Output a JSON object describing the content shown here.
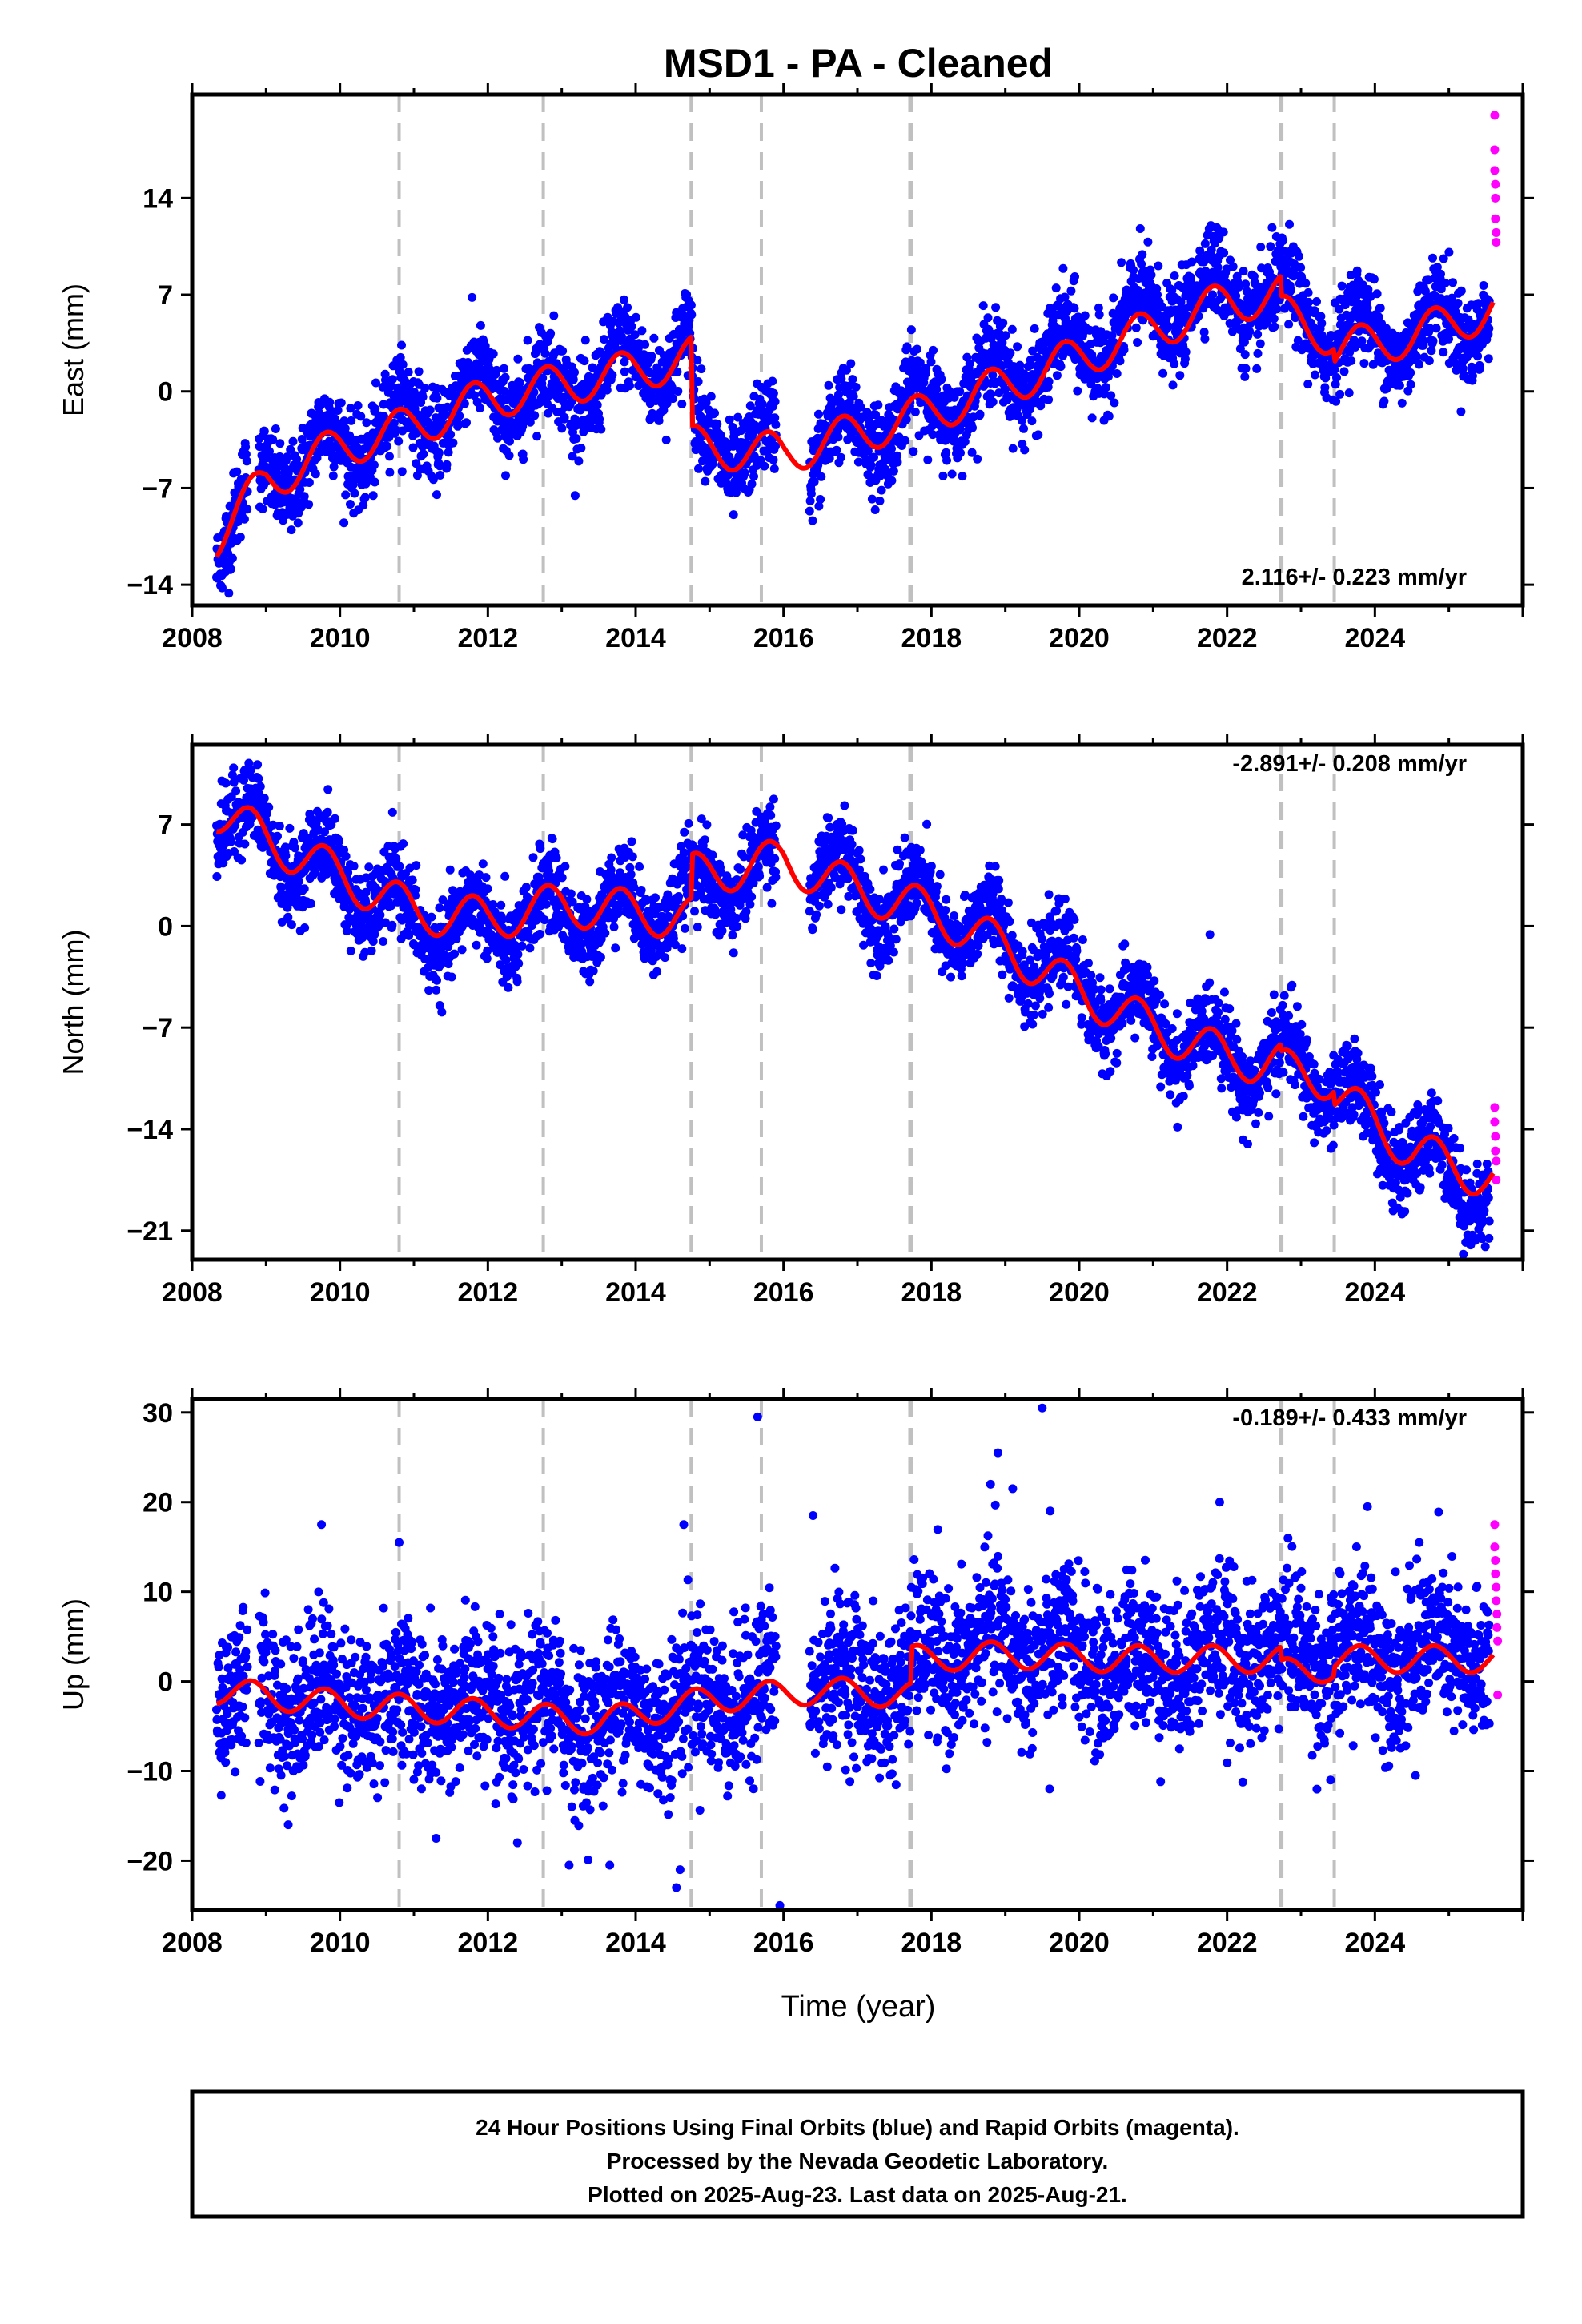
{
  "title": "MSD1  - PA - Cleaned",
  "x_axis_label": "Time (year)",
  "footer": {
    "line1": "24 Hour Positions Using Final Orbits (blue) and Rapid Orbits (magenta).",
    "line2": "Processed by the Nevada Geodetic Laboratory.",
    "line3": "Plotted on 2025-Aug-23. Last data on 2025-Aug-21."
  },
  "colors": {
    "final_orbits": "#0000ff",
    "rapid_orbits": "#ff00ff",
    "model_fit": "#ff0000",
    "event_lines": "#c0c0c0"
  },
  "chart_data": [
    {
      "type": "scatter",
      "id": "east",
      "ylabel": "East (mm)",
      "rate": "2.116+/- 0.223 mm/yr",
      "xlim": [
        2008.0,
        2026.0
      ],
      "ylim": [
        -15.5,
        21.5
      ],
      "xticks": [
        2008,
        2010,
        2012,
        2014,
        2016,
        2018,
        2020,
        2022,
        2024
      ],
      "yticks": [
        -14,
        -7,
        0,
        7,
        14
      ],
      "event_lines": [
        2010.8,
        2012.75,
        2014.75,
        2015.7,
        2017.72,
        2022.73,
        2023.45
      ],
      "series": [
        {
          "name": "Final Orbits",
          "style": "points",
          "color": "#0000ff",
          "start": 2008.33,
          "end": 2025.55,
          "trend": [
            [
              2008.33,
              -11
            ],
            [
              2009.0,
              -6
            ],
            [
              2010.0,
              -4
            ],
            [
              2011.0,
              -2
            ],
            [
              2012.0,
              0
            ],
            [
              2013.0,
              0
            ],
            [
              2014.0,
              2
            ],
            [
              2014.75,
              3
            ],
            [
              2014.8,
              -3.5
            ],
            [
              2016.2,
              -4.5
            ],
            [
              2017.0,
              -3
            ],
            [
              2018.0,
              -1
            ],
            [
              2019.0,
              1
            ],
            [
              2020.0,
              3
            ],
            [
              2021.0,
              5.5
            ],
            [
              2021.5,
              7
            ],
            [
              2022.5,
              7
            ],
            [
              2023.5,
              4
            ],
            [
              2024.5,
              4
            ],
            [
              2025.55,
              6
            ]
          ],
          "amplitude": 2.0,
          "phase": 0.55,
          "noise": 1.6,
          "gaps": [
            [
              2008.75,
              2008.9
            ],
            [
              2015.9,
              2016.35
            ]
          ]
        },
        {
          "name": "Rapid Orbits",
          "style": "points",
          "color": "#ff00ff",
          "points": [
            [
              2025.62,
              20
            ],
            [
              2025.62,
              17.5
            ],
            [
              2025.62,
              16
            ],
            [
              2025.63,
              15
            ],
            [
              2025.63,
              14
            ],
            [
              2025.63,
              12.5
            ],
            [
              2025.64,
              11.5
            ],
            [
              2025.64,
              10.8
            ]
          ]
        },
        {
          "name": "Model",
          "style": "line",
          "color": "#ff0000",
          "breaks": [
            2014.76,
            2022.73,
            2023.45
          ],
          "trend": [
            [
              2008.33,
              -10.5
            ],
            [
              2009.0,
              -6.5
            ],
            [
              2010.0,
              -4.0
            ],
            [
              2011.0,
              -2.5
            ],
            [
              2012.0,
              -0.5
            ],
            [
              2013.0,
              0.5
            ],
            [
              2014.0,
              1.5
            ],
            [
              2014.75,
              2.5
            ],
            [
              2014.77,
              -4.0
            ],
            [
              2016.0,
              -4.5
            ],
            [
              2017.0,
              -3.0
            ],
            [
              2018.0,
              -1.5
            ],
            [
              2019.0,
              0.5
            ],
            [
              2020.0,
              2.5
            ],
            [
              2021.0,
              4.5
            ],
            [
              2022.0,
              6.5
            ],
            [
              2022.72,
              7.0
            ],
            [
              2022.74,
              5.5
            ],
            [
              2023.44,
              4.0
            ],
            [
              2023.46,
              3.0
            ],
            [
              2024.5,
              4.0
            ],
            [
              2025.6,
              6.0
            ]
          ],
          "amplitude": 2.0,
          "phase": 0.55
        }
      ]
    },
    {
      "type": "scatter",
      "id": "north",
      "ylabel": "North (mm)",
      "rate": "-2.891+/- 0.208 mm/yr",
      "xlim": [
        2008.0,
        2026.0
      ],
      "ylim": [
        -23.0,
        12.5
      ],
      "xticks": [
        2008,
        2010,
        2012,
        2014,
        2016,
        2018,
        2020,
        2022,
        2024
      ],
      "yticks": [
        -21,
        -14,
        -7,
        0,
        7
      ],
      "event_lines": [
        2010.8,
        2012.75,
        2014.75,
        2015.7,
        2017.72,
        2022.73,
        2023.45
      ],
      "series": [
        {
          "name": "Final Orbits",
          "style": "points",
          "color": "#0000ff",
          "start": 2008.33,
          "end": 2025.55,
          "trend": [
            [
              2008.33,
              8
            ],
            [
              2009.5,
              4.5
            ],
            [
              2010.5,
              2
            ],
            [
              2011.0,
              0
            ],
            [
              2012.0,
              0
            ],
            [
              2013.0,
              1
            ],
            [
              2014.0,
              1
            ],
            [
              2014.8,
              2
            ],
            [
              2015.5,
              4
            ],
            [
              2016.5,
              4
            ],
            [
              2017.0,
              2.5
            ],
            [
              2018.0,
              1
            ],
            [
              2019.0,
              -1
            ],
            [
              2020.0,
              -4
            ],
            [
              2021.0,
              -7
            ],
            [
              2022.0,
              -9
            ],
            [
              2022.8,
              -9.5
            ],
            [
              2023.5,
              -11
            ],
            [
              2024.0,
              -14
            ],
            [
              2024.7,
              -16
            ],
            [
              2025.55,
              -18.5
            ]
          ],
          "amplitude": 2.0,
          "phase": 0.55,
          "noise": 1.4,
          "gaps": [
            [
              2015.9,
              2016.35
            ]
          ]
        },
        {
          "name": "Rapid Orbits",
          "style": "points",
          "color": "#ff00ff",
          "points": [
            [
              2025.62,
              -12.5
            ],
            [
              2025.62,
              -13.5
            ],
            [
              2025.63,
              -14.5
            ],
            [
              2025.63,
              -15.5
            ],
            [
              2025.64,
              -16.2
            ],
            [
              2025.64,
              -17.5
            ]
          ]
        },
        {
          "name": "Model",
          "style": "line",
          "color": "#ff0000",
          "breaks": [
            2014.76,
            2022.73,
            2023.45
          ],
          "trend": [
            [
              2008.33,
              8.0
            ],
            [
              2009.0,
              6.0
            ],
            [
              2010.0,
              3.5
            ],
            [
              2011.0,
              1.0
            ],
            [
              2012.0,
              0.5
            ],
            [
              2013.0,
              1.5
            ],
            [
              2014.0,
              1.0
            ],
            [
              2014.75,
              0.5
            ],
            [
              2014.77,
              3.5
            ],
            [
              2016.0,
              4.5
            ],
            [
              2017.0,
              2.5
            ],
            [
              2018.0,
              1.0
            ],
            [
              2019.0,
              -1.5
            ],
            [
              2020.0,
              -4.5
            ],
            [
              2021.0,
              -7.0
            ],
            [
              2022.0,
              -9.0
            ],
            [
              2022.72,
              -9.5
            ],
            [
              2022.74,
              -10.0
            ],
            [
              2023.44,
              -10.5
            ],
            [
              2023.46,
              -11.5
            ],
            [
              2024.5,
              -15.5
            ],
            [
              2025.6,
              -17.5
            ]
          ],
          "amplitude": 2.0,
          "phase": 0.55
        }
      ]
    },
    {
      "type": "scatter",
      "id": "up",
      "ylabel": "Up (mm)",
      "rate": "-0.189+/- 0.433 mm/yr",
      "xlim": [
        2008.0,
        2026.0
      ],
      "ylim": [
        -25.5,
        31.5
      ],
      "xticks": [
        2008,
        2010,
        2012,
        2014,
        2016,
        2018,
        2020,
        2022,
        2024
      ],
      "yticks": [
        -20,
        -10,
        0,
        10,
        20,
        30
      ],
      "event_lines": [
        2010.8,
        2012.75,
        2014.75,
        2015.7,
        2017.72,
        2022.73,
        2023.45
      ],
      "series": [
        {
          "name": "Final Orbits",
          "style": "points",
          "color": "#0000ff",
          "start": 2008.33,
          "end": 2025.55,
          "trend": [
            [
              2008.33,
              -1
            ],
            [
              2010.0,
              -2
            ],
            [
              2012.0,
              -3
            ],
            [
              2013.5,
              -4
            ],
            [
              2015.0,
              -2
            ],
            [
              2016.5,
              0
            ],
            [
              2017.7,
              -1
            ],
            [
              2017.8,
              2
            ],
            [
              2019.0,
              4
            ],
            [
              2020.5,
              2
            ],
            [
              2022.0,
              3
            ],
            [
              2023.5,
              3
            ],
            [
              2025.55,
              3
            ]
          ],
          "amplitude": 2.2,
          "phase": 0.55,
          "noise": 4.2,
          "gaps": [
            [
              2008.75,
              2008.9
            ],
            [
              2015.9,
              2016.35
            ]
          ]
        },
        {
          "name": "Rapid Orbits",
          "style": "points",
          "color": "#ff00ff",
          "points": [
            [
              2025.62,
              17.5
            ],
            [
              2025.62,
              15
            ],
            [
              2025.63,
              13.5
            ],
            [
              2025.63,
              12
            ],
            [
              2025.64,
              10.5
            ],
            [
              2025.64,
              9
            ],
            [
              2025.65,
              7.5
            ],
            [
              2025.65,
              6
            ],
            [
              2025.66,
              4.5
            ],
            [
              2025.66,
              -1.5
            ]
          ]
        },
        {
          "name": "Model",
          "style": "line",
          "color": "#ff0000",
          "breaks": [
            2017.73,
            2022.73,
            2023.45
          ],
          "trend": [
            [
              2008.33,
              -1.0
            ],
            [
              2010.0,
              -2.5
            ],
            [
              2012.0,
              -3.5
            ],
            [
              2013.5,
              -4.5
            ],
            [
              2015.0,
              -2.0
            ],
            [
              2016.5,
              -1.0
            ],
            [
              2017.72,
              -1.5
            ],
            [
              2017.74,
              2.5
            ],
            [
              2019.0,
              3.0
            ],
            [
              2020.5,
              2.5
            ],
            [
              2022.0,
              2.5
            ],
            [
              2022.72,
              2.5
            ],
            [
              2022.74,
              1.0
            ],
            [
              2023.44,
              1.5
            ],
            [
              2023.46,
              2.5
            ],
            [
              2025.6,
              2.5
            ]
          ],
          "amplitude": 2.0,
          "phase": 0.55
        },
        {
          "name": "Outliers",
          "style": "points",
          "color": "#0000ff",
          "points": [
            [
              2015.65,
              29.5
            ],
            [
              2019.5,
              30.5
            ],
            [
              2018.9,
              25.5
            ],
            [
              2018.8,
              22
            ],
            [
              2019.1,
              21.5
            ],
            [
              2021.9,
              20
            ],
            [
              2023.9,
              19.5
            ],
            [
              2009.75,
              17.5
            ],
            [
              2016.4,
              18.5
            ],
            [
              2014.65,
              17.5
            ],
            [
              2010.8,
              15.5
            ],
            [
              2024.6,
              15.5
            ],
            [
              2015.95,
              -25
            ],
            [
              2013.1,
              -20.5
            ],
            [
              2013.65,
              -20.5
            ],
            [
              2014.55,
              -23
            ],
            [
              2014.6,
              -21
            ],
            [
              2012.4,
              -18
            ],
            [
              2009.3,
              -16
            ],
            [
              2011.3,
              -17.5
            ],
            [
              2023.4,
              -11
            ],
            [
              2019.6,
              -12
            ],
            [
              2024.55,
              -10.5
            ]
          ]
        }
      ]
    }
  ]
}
